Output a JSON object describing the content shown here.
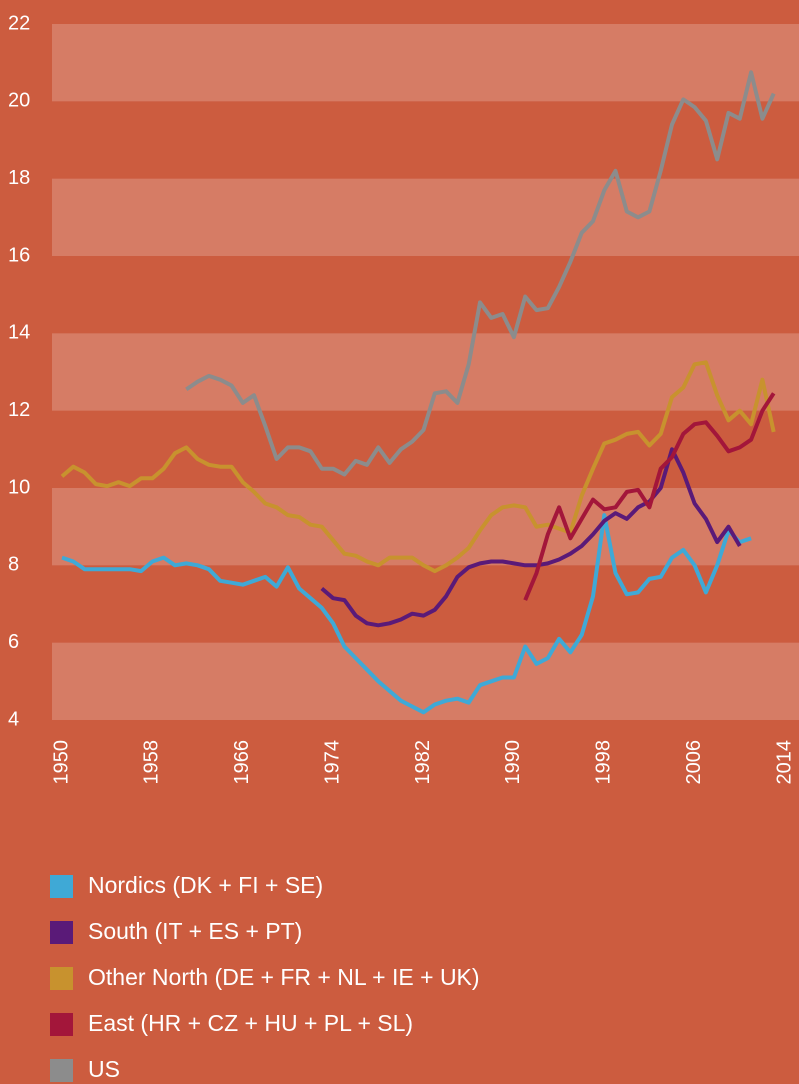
{
  "chart_data": {
    "type": "line",
    "xlim": [
      1950,
      2014
    ],
    "xticks": [
      1950,
      1958,
      1966,
      1974,
      1982,
      1990,
      1998,
      2006,
      2014
    ],
    "ylim": [
      4,
      22
    ],
    "yticks": [
      4,
      6,
      8,
      10,
      12,
      14,
      16,
      18,
      20,
      22
    ],
    "grid": "bands",
    "series": [
      {
        "name": "Nordics (DK + FI + SE)",
        "color": "#3fa9d6",
        "x": [
          1950,
          1951,
          1952,
          1953,
          1954,
          1955,
          1956,
          1957,
          1958,
          1959,
          1960,
          1961,
          1962,
          1963,
          1964,
          1965,
          1966,
          1967,
          1968,
          1969,
          1970,
          1971,
          1972,
          1973,
          1974,
          1975,
          1976,
          1977,
          1978,
          1979,
          1980,
          1981,
          1982,
          1983,
          1984,
          1985,
          1986,
          1987,
          1988,
          1989,
          1990,
          1991,
          1992,
          1993,
          1994,
          1995,
          1996,
          1997,
          1998,
          1999,
          2000,
          2001,
          2002,
          2003,
          2004,
          2005,
          2006,
          2007,
          2008,
          2009,
          2010,
          2011
        ],
        "values": [
          8.2,
          8.1,
          7.9,
          7.9,
          7.9,
          7.9,
          7.9,
          7.85,
          8.1,
          8.2,
          8.0,
          8.05,
          8.0,
          7.9,
          7.6,
          7.55,
          7.5,
          7.6,
          7.7,
          7.45,
          7.95,
          7.4,
          7.15,
          6.9,
          6.5,
          5.9,
          5.6,
          5.3,
          5.0,
          4.75,
          4.5,
          4.35,
          4.2,
          4.4,
          4.5,
          4.55,
          4.45,
          4.9,
          5.0,
          5.1,
          5.1,
          5.9,
          5.45,
          5.6,
          6.1,
          5.75,
          6.2,
          7.2,
          9.3,
          7.8,
          7.25,
          7.3,
          7.65,
          7.7,
          8.2,
          8.4,
          8.0,
          7.3,
          8.0,
          8.9,
          8.6,
          8.7
        ]
      },
      {
        "name": "South (IT + ES + PT)",
        "color": "#5a1a78",
        "x": [
          1973,
          1974,
          1975,
          1976,
          1977,
          1978,
          1979,
          1980,
          1981,
          1982,
          1983,
          1984,
          1985,
          1986,
          1987,
          1988,
          1989,
          1990,
          1991,
          1992,
          1993,
          1994,
          1995,
          1996,
          1997,
          1998,
          1999,
          2000,
          2001,
          2002,
          2003,
          2004,
          2005,
          2006,
          2007,
          2008,
          2009,
          2010
        ],
        "values": [
          7.4,
          7.15,
          7.1,
          6.7,
          6.5,
          6.45,
          6.5,
          6.6,
          6.75,
          6.7,
          6.85,
          7.2,
          7.7,
          7.95,
          8.05,
          8.1,
          8.1,
          8.05,
          8.0,
          8.0,
          8.05,
          8.15,
          8.3,
          8.5,
          8.8,
          9.15,
          9.35,
          9.2,
          9.5,
          9.65,
          10.0,
          11.0,
          10.4,
          9.6,
          9.2,
          8.6,
          9.0,
          8.5
        ]
      },
      {
        "name": "Other North (DE + FR + NL + IE + UK)",
        "color": "#c8922e",
        "x": [
          1950,
          1951,
          1952,
          1953,
          1954,
          1955,
          1956,
          1957,
          1958,
          1959,
          1960,
          1961,
          1962,
          1963,
          1964,
          1965,
          1966,
          1967,
          1968,
          1969,
          1970,
          1971,
          1972,
          1973,
          1974,
          1975,
          1976,
          1977,
          1978,
          1979,
          1980,
          1981,
          1982,
          1983,
          1984,
          1985,
          1986,
          1987,
          1988,
          1989,
          1990,
          1991,
          1992,
          1993,
          1994,
          1995,
          1996,
          1997,
          1998,
          1999,
          2000,
          2001,
          2002,
          2003,
          2004,
          2005,
          2006,
          2007,
          2008,
          2009,
          2010,
          2011,
          2012,
          2013
        ],
        "values": [
          10.3,
          10.55,
          10.4,
          10.1,
          10.05,
          10.15,
          10.05,
          10.25,
          10.25,
          10.5,
          10.9,
          11.05,
          10.75,
          10.6,
          10.55,
          10.55,
          10.15,
          9.9,
          9.6,
          9.5,
          9.3,
          9.25,
          9.05,
          9.0,
          8.65,
          8.3,
          8.25,
          8.1,
          8.0,
          8.2,
          8.2,
          8.2,
          8.0,
          7.85,
          8.0,
          8.2,
          8.45,
          8.9,
          9.3,
          9.5,
          9.55,
          9.5,
          9.0,
          9.05,
          8.95,
          8.85,
          9.8,
          10.5,
          11.15,
          11.25,
          11.4,
          11.45,
          11.1,
          11.4,
          12.35,
          12.6,
          13.2,
          13.25,
          12.4,
          11.75,
          12.0,
          11.65,
          12.8,
          11.45
        ]
      },
      {
        "name": "East (HR + CZ + HU + PL + SL)",
        "color": "#a3163a",
        "x": [
          1991,
          1992,
          1993,
          1994,
          1995,
          1996,
          1997,
          1998,
          1999,
          2000,
          2001,
          2002,
          2003,
          2004,
          2005,
          2006,
          2007,
          2008,
          2009,
          2010,
          2011,
          2012,
          2013
        ],
        "values": [
          7.1,
          7.8,
          8.8,
          9.5,
          8.7,
          9.2,
          9.7,
          9.45,
          9.5,
          9.9,
          9.95,
          9.5,
          10.5,
          10.8,
          11.4,
          11.65,
          11.7,
          11.35,
          10.95,
          11.05,
          11.25,
          12.0,
          12.45
        ]
      },
      {
        "name": "US",
        "color": "#8c8c8c",
        "x": [
          1961,
          1962,
          1963,
          1964,
          1965,
          1966,
          1967,
          1968,
          1969,
          1970,
          1971,
          1972,
          1973,
          1974,
          1975,
          1976,
          1977,
          1978,
          1979,
          1980,
          1981,
          1982,
          1983,
          1984,
          1985,
          1986,
          1987,
          1988,
          1989,
          1990,
          1991,
          1992,
          1993,
          1994,
          1995,
          1996,
          1997,
          1998,
          1999,
          2000,
          2001,
          2002,
          2003,
          2004,
          2005,
          2006,
          2007,
          2008,
          2009,
          2010,
          2011,
          2012,
          2013
        ],
        "values": [
          12.55,
          12.75,
          12.9,
          12.8,
          12.65,
          12.2,
          12.4,
          11.6,
          10.75,
          11.05,
          11.05,
          10.95,
          10.5,
          10.5,
          10.35,
          10.7,
          10.6,
          11.05,
          10.65,
          11.0,
          11.2,
          11.5,
          12.45,
          12.5,
          12.2,
          13.2,
          14.8,
          14.4,
          14.5,
          13.9,
          14.95,
          14.6,
          14.65,
          15.2,
          15.85,
          16.6,
          16.9,
          17.7,
          18.2,
          17.15,
          17.0,
          17.15,
          18.2,
          19.4,
          20.05,
          19.85,
          19.5,
          18.5,
          19.7,
          19.55,
          20.75,
          19.55,
          20.2
        ]
      }
    ]
  }
}
